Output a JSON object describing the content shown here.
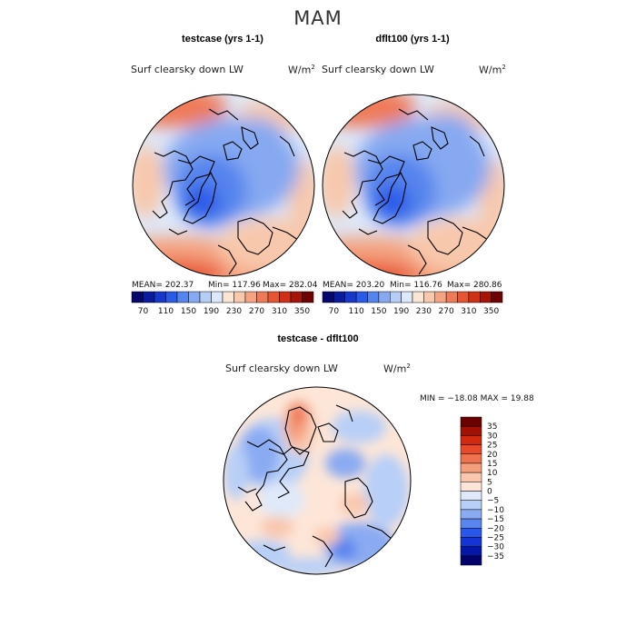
{
  "figure": {
    "season": "MAM",
    "units": "W/m"
  },
  "colors": {
    "abs_scale": [
      "#06076e",
      "#0a1b9e",
      "#1838cc",
      "#2a5ae8",
      "#5584ee",
      "#86a9f1",
      "#b6cef6",
      "#dde9fa",
      "#fbe5d4",
      "#f8c8ac",
      "#f4a482",
      "#ef7a58",
      "#e65432",
      "#cf3016",
      "#a41408",
      "#6e0303"
    ],
    "diff_scale": [
      "#02026a",
      "#0616a6",
      "#1534d6",
      "#2a57e8",
      "#5a84ee",
      "#8aaaf2",
      "#b8cff7",
      "#dfe9fa",
      "#fde6d8",
      "#f9c7ae",
      "#f49e7c",
      "#ee7250",
      "#e64a2a",
      "#d22a10",
      "#a20f04",
      "#6a0000"
    ]
  },
  "chart_data": [
    {
      "type": "heatmap",
      "panel": "testcase",
      "title": "testcase (yrs 1-1)",
      "variable": "Surf clearsky down LW",
      "units": "W/m",
      "mean_label": "MEAN= 202.37",
      "min_label": "Min= 117.96",
      "max_label": "Max= 282.04",
      "mean": 202.37,
      "min": 117.96,
      "max": 282.04,
      "colorbar_ticks": [
        "70",
        "110",
        "150",
        "190",
        "230",
        "270",
        "310",
        "350"
      ]
    },
    {
      "type": "heatmap",
      "panel": "dflt100",
      "title": "dflt100 (yrs 1-1)",
      "variable": "Surf clearsky down LW",
      "units": "W/m",
      "mean_label": "MEAN= 203.20",
      "min_label": "Min= 116.76",
      "max_label": "Max= 280.86",
      "mean": 203.2,
      "min": 116.76,
      "max": 280.86,
      "colorbar_ticks": [
        "70",
        "110",
        "150",
        "190",
        "230",
        "270",
        "310",
        "350"
      ]
    },
    {
      "type": "heatmap",
      "panel": "difference",
      "title": "testcase - dflt100",
      "variable": "Surf clearsky down LW",
      "units": "W/m",
      "minmax_label": "MIN = −18.08  MAX =  19.88",
      "min": -18.08,
      "max": 19.88,
      "colorbar_ticks": [
        "35",
        "30",
        "25",
        "20",
        "15",
        "10",
        "5",
        "0",
        "−5",
        "−10",
        "−15",
        "−20",
        "−25",
        "−30",
        "−35"
      ]
    }
  ]
}
